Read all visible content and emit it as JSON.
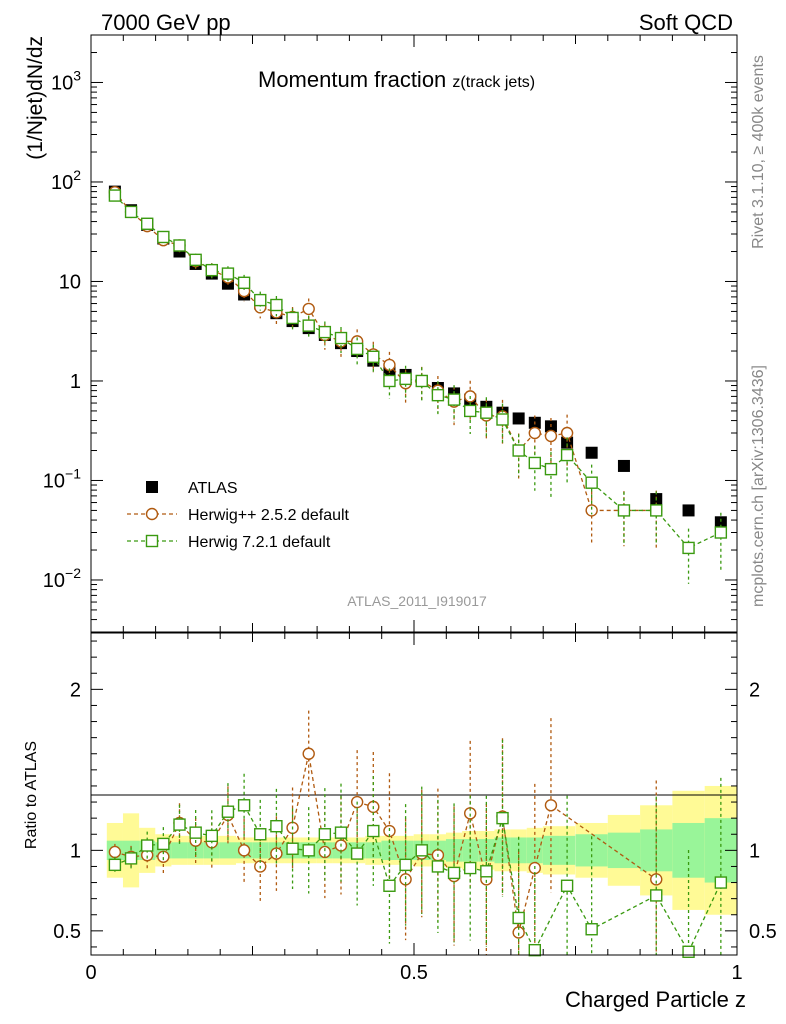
{
  "header": {
    "left": "7000 GeV pp",
    "right": "Soft QCD",
    "side_top": "Rivet 3.1.10, ≥ 400k events",
    "side_bottom": "mcplots.cern.ch [arXiv:1306.3436]",
    "analysis_id": "ATLAS_2011_I919017"
  },
  "chart_data": [
    {
      "type": "scatter",
      "title": "Momentum fraction",
      "title_suffix": "z(track jets)",
      "ylabel": "(1/Njet)dN/dz",
      "yscale": "log",
      "ylim": [
        0.003,
        3000
      ],
      "xlim": [
        0,
        1
      ],
      "y_ticks": [
        {
          "v": 0.01,
          "base": "10",
          "exp": "−2"
        },
        {
          "v": 0.1,
          "base": "10",
          "exp": "−1"
        },
        {
          "v": 1,
          "base": "1",
          "exp": ""
        },
        {
          "v": 10,
          "base": "10",
          "exp": ""
        },
        {
          "v": 100,
          "base": "10",
          "exp": "2"
        },
        {
          "v": 1000,
          "base": "10",
          "exp": "3"
        }
      ],
      "legend_placement": "lower-left",
      "x": [
        0.037,
        0.062,
        0.087,
        0.112,
        0.137,
        0.162,
        0.187,
        0.212,
        0.237,
        0.262,
        0.287,
        0.312,
        0.337,
        0.362,
        0.387,
        0.412,
        0.437,
        0.462,
        0.487,
        0.512,
        0.537,
        0.562,
        0.587,
        0.612,
        0.637,
        0.662,
        0.687,
        0.712,
        0.737,
        0.775,
        0.825,
        0.875,
        0.925,
        0.975
      ],
      "series": [
        {
          "name": "ATLAS",
          "color": "#000000",
          "marker": "filled-square",
          "values": [
            80,
            52,
            37,
            27,
            20,
            15,
            12,
            9.5,
            7.4,
            6.0,
            4.8,
            4.0,
            3.4,
            2.9,
            2.4,
            2.0,
            1.6,
            1.3,
            1.15,
            1.0,
            0.85,
            0.75,
            0.65,
            0.55,
            0.48,
            0.42,
            0.38,
            0.35,
            0.24,
            0.19,
            0.14,
            0.065,
            0.05,
            0.038
          ]
        },
        {
          "name": "Herwig++ 2.5.2 default",
          "color": "#b05a10",
          "marker": "open-circle",
          "values": [
            79,
            50,
            36,
            26,
            23,
            16,
            13,
            11,
            8.0,
            5.5,
            4.9,
            4.4,
            5.3,
            2.9,
            2.5,
            2.5,
            1.85,
            1.45,
            0.95,
            1.0,
            0.8,
            0.62,
            0.7,
            0.45,
            0.44,
            0.2,
            0.3,
            0.28,
            0.3,
            0.05,
            0.05,
            0.05,
            null,
            null
          ]
        },
        {
          "name": "Herwig 7.2.1 default",
          "color": "#3a9a10",
          "marker": "open-square",
          "values": [
            73,
            50,
            38,
            28,
            23,
            16.5,
            13,
            12,
            9.7,
            6.5,
            5.8,
            4.3,
            3.6,
            3.1,
            2.7,
            2.1,
            1.75,
            1.0,
            1.05,
            1.0,
            0.72,
            0.65,
            0.5,
            0.48,
            0.41,
            0.2,
            0.15,
            0.13,
            0.18,
            0.095,
            0.05,
            0.05,
            0.021,
            0.03
          ]
        }
      ]
    },
    {
      "type": "scatter",
      "ylabel": "Ratio to ATLAS",
      "xlabel": "Charged Particle z",
      "ylim": [
        0.35,
        2.35
      ],
      "xlim": [
        0,
        1
      ],
      "x_ticks": [
        "0",
        "0.5",
        "1"
      ],
      "y_ticks": [
        "0.5",
        "1",
        "2"
      ],
      "band_colors": {
        "inner": "#99f599",
        "outer": "#fffa96"
      },
      "band_inner_halfwidth": [
        0.06,
        0.06,
        0.06,
        0.05,
        0.05,
        0.05,
        0.05,
        0.05,
        0.05,
        0.05,
        0.05,
        0.05,
        0.05,
        0.05,
        0.05,
        0.05,
        0.05,
        0.06,
        0.06,
        0.06,
        0.06,
        0.07,
        0.07,
        0.07,
        0.08,
        0.08,
        0.08,
        0.09,
        0.09,
        0.1,
        0.11,
        0.13,
        0.17,
        0.2
      ],
      "band_outer_halfwidth": [
        0.17,
        0.23,
        0.14,
        0.1,
        0.09,
        0.09,
        0.09,
        0.09,
        0.08,
        0.08,
        0.08,
        0.08,
        0.08,
        0.08,
        0.08,
        0.08,
        0.09,
        0.09,
        0.09,
        0.1,
        0.1,
        0.11,
        0.12,
        0.12,
        0.13,
        0.13,
        0.14,
        0.15,
        0.15,
        0.17,
        0.22,
        0.28,
        0.37,
        0.4
      ],
      "series": [
        {
          "name": "Herwig++ 2.5.2 default",
          "color": "#b05a10",
          "values": [
            0.99,
            0.96,
            0.97,
            0.96,
            1.17,
            1.06,
            1.05,
            1.22,
            1.0,
            0.9,
            0.98,
            1.14,
            1.6,
            0.99,
            1.03,
            1.3,
            1.27,
            1.12,
            0.82,
            0.98,
            0.97,
            0.84,
            1.23,
            0.82,
            1.21,
            0.49,
            0.89,
            1.28,
            null,
            null,
            null,
            0.82,
            null,
            null
          ]
        },
        {
          "name": "Herwig 7.2.1 default",
          "color": "#3a9a10",
          "values": [
            0.91,
            0.95,
            1.03,
            1.04,
            1.16,
            1.11,
            1.09,
            1.24,
            1.28,
            1.1,
            1.15,
            1.01,
            1.0,
            1.1,
            1.11,
            0.98,
            1.12,
            0.78,
            0.91,
            1.0,
            0.9,
            0.86,
            0.89,
            0.87,
            1.2,
            0.58,
            0.38,
            null,
            0.78,
            0.51,
            null,
            0.72,
            0.37,
            0.8
          ]
        }
      ]
    }
  ]
}
